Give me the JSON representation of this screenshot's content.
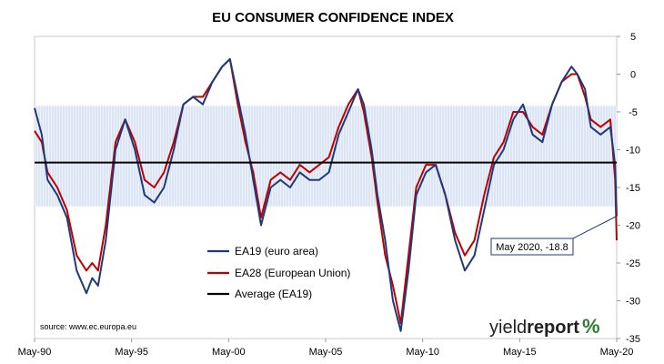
{
  "chart_data": {
    "type": "line",
    "title": "EU CONSUMER CONFIDENCE INDEX",
    "x_tick_labels": [
      "May-90",
      "May-95",
      "May-00",
      "May-05",
      "May-10",
      "May-15",
      "May-20"
    ],
    "x_tick_years": [
      1990.33,
      1995.33,
      2000.33,
      2005.33,
      2010.33,
      2015.33,
      2020.33
    ],
    "xlim": [
      1990.33,
      2020.33
    ],
    "ylim": [
      -35,
      5
    ],
    "y_ticks": [
      5,
      0,
      -5,
      -10,
      -15,
      -20,
      -25,
      -30,
      -35
    ],
    "shaded_band": [
      -17.5,
      -4.2
    ],
    "average": {
      "name": "Average (EA19)",
      "value": -11.7,
      "color": "#000000"
    },
    "series": [
      {
        "name": "EA19 (euro area)",
        "color": "#1f3a7a",
        "x": [
          1990.33,
          1990.7,
          1991.0,
          1991.5,
          1992.0,
          1992.5,
          1993.0,
          1993.3,
          1993.6,
          1994.0,
          1994.5,
          1995.0,
          1995.5,
          1996.0,
          1996.5,
          1997.0,
          1997.5,
          1998.0,
          1998.5,
          1999.0,
          1999.5,
          2000.0,
          2000.4,
          2000.8,
          2001.2,
          2001.6,
          2002.0,
          2002.5,
          2003.0,
          2003.5,
          2004.0,
          2004.5,
          2005.0,
          2005.5,
          2006.0,
          2006.5,
          2007.0,
          2007.3,
          2007.7,
          2008.0,
          2008.4,
          2008.8,
          2009.2,
          2009.6,
          2010.0,
          2010.5,
          2011.0,
          2011.5,
          2012.0,
          2012.5,
          2013.0,
          2013.5,
          2014.0,
          2014.5,
          2015.0,
          2015.5,
          2016.0,
          2016.5,
          2017.0,
          2017.5,
          2018.0,
          2018.3,
          2018.7,
          2019.0,
          2019.5,
          2020.0,
          2020.25,
          2020.33
        ],
        "values": [
          -4.5,
          -8,
          -14,
          -16,
          -19,
          -26,
          -29,
          -27,
          -28,
          -22,
          -10,
          -6,
          -10,
          -16,
          -17,
          -15,
          -10,
          -4,
          -3,
          -4,
          -1,
          1,
          2,
          -3,
          -8,
          -14,
          -20,
          -15,
          -14,
          -15,
          -13,
          -14,
          -14,
          -13,
          -8,
          -5,
          -2,
          -4,
          -10,
          -16,
          -22,
          -30,
          -34,
          -26,
          -16,
          -13,
          -12,
          -16,
          -22,
          -26,
          -24,
          -18,
          -12,
          -10,
          -6,
          -4,
          -8,
          -9,
          -4,
          -1,
          1,
          0,
          -2,
          -7,
          -8,
          -7,
          -12,
          -18.8
        ]
      },
      {
        "name": "EA28 (European Union)",
        "color": "#c00000",
        "x": [
          1990.33,
          1990.7,
          1991.0,
          1991.5,
          1992.0,
          1992.5,
          1993.0,
          1993.3,
          1993.6,
          1994.0,
          1994.5,
          1995.0,
          1995.5,
          1996.0,
          1996.5,
          1997.0,
          1997.5,
          1998.0,
          1998.5,
          1999.0,
          1999.5,
          2000.0,
          2000.4,
          2000.8,
          2001.2,
          2001.6,
          2002.0,
          2002.5,
          2003.0,
          2003.5,
          2004.0,
          2004.5,
          2005.0,
          2005.5,
          2006.0,
          2006.5,
          2007.0,
          2007.3,
          2007.7,
          2008.0,
          2008.4,
          2008.8,
          2009.2,
          2009.6,
          2010.0,
          2010.5,
          2011.0,
          2011.5,
          2012.0,
          2012.5,
          2013.0,
          2013.5,
          2014.0,
          2014.5,
          2015.0,
          2015.5,
          2016.0,
          2016.5,
          2017.0,
          2017.5,
          2018.0,
          2018.3,
          2018.7,
          2019.0,
          2019.5,
          2020.0,
          2020.25,
          2020.33
        ],
        "values": [
          -7.5,
          -9,
          -13,
          -15,
          -18,
          -24,
          -26,
          -25,
          -26,
          -20,
          -9,
          -6,
          -9,
          -14,
          -15,
          -13,
          -9,
          -4,
          -3,
          -3,
          -1,
          1,
          2,
          -4,
          -9,
          -13,
          -19,
          -14,
          -13,
          -14,
          -12,
          -13,
          -12,
          -11,
          -7,
          -4,
          -2,
          -5,
          -11,
          -17,
          -24,
          -28,
          -33,
          -24,
          -15,
          -12,
          -12,
          -16,
          -21,
          -24,
          -22,
          -16,
          -11,
          -9,
          -5,
          -5,
          -7,
          -8,
          -4,
          -1,
          0,
          0,
          -3,
          -6,
          -7,
          -6,
          -14,
          -22
        ]
      }
    ],
    "annotation": {
      "text": "May 2020, -18.8",
      "x": 2020.33,
      "y": -18.8
    },
    "legend_placement": "lower-left-center",
    "grid": false
  },
  "source_text": "source: www.ec.europa.eu",
  "brand": {
    "word_plain": "yield",
    "word_bold": "report",
    "symbol": "%"
  }
}
